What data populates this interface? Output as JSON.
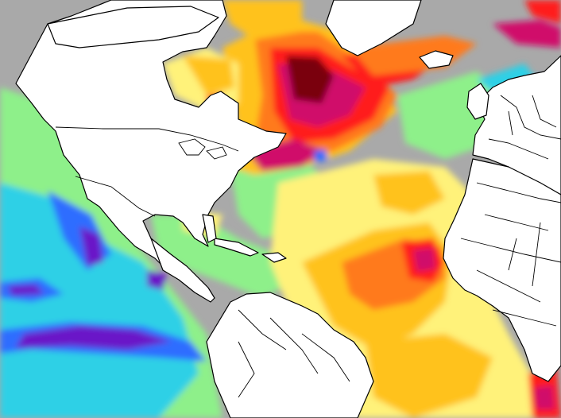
{
  "map": {
    "type": "sea-surface-temperature-anomaly",
    "region": "north-atlantic-and-eastern-pacific",
    "colors": {
      "land": "#ffffff",
      "border": "#000000",
      "no_data": "#a9a9a9",
      "cold_strong": "#6a18c8",
      "cold_mid": "#2f6dff",
      "cold": "#2fd0e6",
      "cool_light": "#8ef08a",
      "warm_light": "#fff27a",
      "warm": "#ffc21e",
      "warm_mid": "#ff7a1a",
      "hot": "#ff1a1a",
      "hot_strong": "#d0106a",
      "hottest": "#7a0010"
    }
  }
}
